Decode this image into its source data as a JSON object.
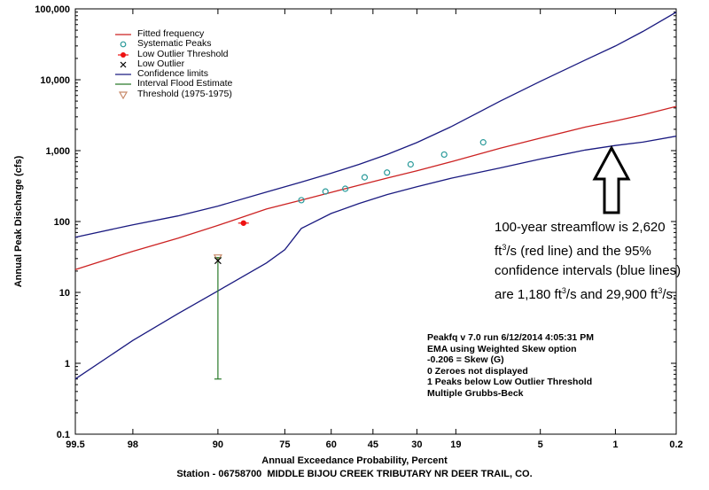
{
  "chart_data": {
    "type": "line",
    "title": "",
    "xlabel": "Annual Exceedance Probability, Percent",
    "ylabel": "Annual Peak Discharge (cfs)",
    "x_scale": "normal-probability (reversed)",
    "y_scale": "log",
    "xlim": [
      99.5,
      0.2
    ],
    "ylim": [
      0.1,
      100000
    ],
    "x_ticks": [
      "99.5",
      "98",
      "90",
      "75",
      "60",
      "45",
      "30",
      "19",
      "5",
      "1",
      "0.2"
    ],
    "y_ticks": [
      "0.1",
      "1",
      "10",
      "100",
      "1,000",
      "10,000",
      "100,000"
    ],
    "grid": false,
    "legend_position": "top-left",
    "legend": [
      {
        "label": "Fitted frequency",
        "symbol": "red-line",
        "color": "#cc2222"
      },
      {
        "label": "Systematic Peaks",
        "symbol": "teal-circle",
        "color": "#2a9a9a"
      },
      {
        "label": "Low Outlier Threshold",
        "symbol": "red-dot",
        "color": "#ee1111"
      },
      {
        "label": "Low Outlier",
        "symbol": "black-x",
        "color": "#000000"
      },
      {
        "label": "Confidence limits",
        "symbol": "blue-line",
        "color": "#1a1a80"
      },
      {
        "label": "Interval Flood Estimate",
        "symbol": "green-bar",
        "color": "#2a7a2a"
      },
      {
        "label": "Threshold (1975-1975)",
        "symbol": "tan-triangle",
        "color": "#c88a6a"
      }
    ],
    "series": [
      {
        "name": "Fitted frequency",
        "color": "#cc2222",
        "x": [
          99.5,
          98,
          95,
          90,
          80,
          70,
          60,
          50,
          40,
          30,
          20,
          10,
          5,
          2,
          1,
          0.5,
          0.2
        ],
        "y": [
          21,
          38,
          58,
          88,
          150,
          200,
          258,
          325,
          410,
          520,
          700,
          1080,
          1500,
          2150,
          2620,
          3200,
          4200
        ]
      },
      {
        "name": "Confidence limits (upper)",
        "color": "#1a1a80",
        "x": [
          99.5,
          98,
          95,
          90,
          80,
          70,
          60,
          50,
          40,
          30,
          20,
          10,
          5,
          2,
          1,
          0.5,
          0.2
        ],
        "y": [
          60,
          90,
          120,
          165,
          260,
          360,
          480,
          640,
          880,
          1300,
          2200,
          5000,
          9500,
          19000,
          29900,
          48000,
          90000
        ]
      },
      {
        "name": "Confidence limits (lower)",
        "color": "#1a1a80",
        "x": [
          99.5,
          98,
          95,
          90,
          80,
          75,
          70,
          60,
          50,
          40,
          30,
          20,
          10,
          5,
          2,
          1,
          0.5,
          0.2
        ],
        "y": [
          0.6,
          2.1,
          5,
          10.5,
          26,
          40,
          80,
          130,
          180,
          240,
          310,
          410,
          570,
          760,
          1020,
          1180,
          1320,
          1600
        ]
      }
    ],
    "systematic_peaks": {
      "x": [
        70,
        62,
        55,
        48,
        40,
        32,
        22,
        13
      ],
      "y": [
        200,
        265,
        290,
        420,
        490,
        640,
        880,
        1310
      ]
    },
    "low_outlier_threshold": {
      "x": 85.3,
      "y": 95
    },
    "low_outlier": {
      "x": 90,
      "y": 28
    },
    "threshold_1975": {
      "x": 90,
      "y": 31
    },
    "interval_flood_estimate": {
      "x": 90,
      "y_low": 0.6,
      "y_high": 31
    }
  },
  "annotations": {
    "note_line1": "100-year streamflow is 2,620",
    "note_line2_pre": "ft",
    "note_line2_sup": "3",
    "note_line2_post": "/s (red line) and the 95%",
    "note_line3": "confidence intervals (blue lines)",
    "note_line4_a": "are 1,180 ft",
    "note_line4_sup1": "3",
    "note_line4_b": "/s and 29,900 ft",
    "note_line4_sup2": "3",
    "note_line4_c": "/s.",
    "info_lines": [
      "Peakfq v 7.0 run 6/12/2014 4:05:31 PM",
      "EMA using Weighted Skew option",
      "-0.206 = Skew (G)",
      "0 Zeroes not displayed",
      "1 Peaks below Low Outlier Threshold",
      "Multiple Grubbs-Beck"
    ],
    "station": "Station - 06758700  MIDDLE BIJOU CREEK TRIBUTARY NR DEER TRAIL, CO."
  }
}
